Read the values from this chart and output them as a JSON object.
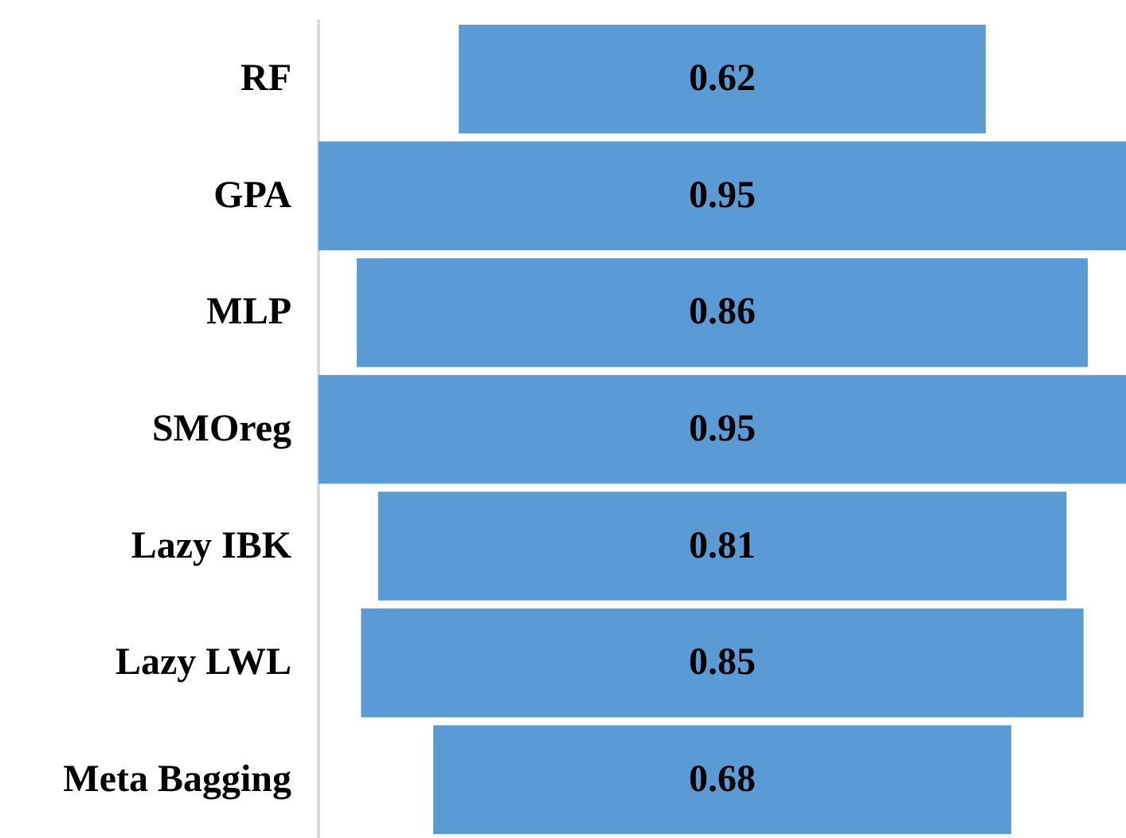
{
  "chart_data": {
    "type": "other",
    "categories": [
      "RF",
      "GPA",
      "MLP",
      "SMOreg",
      "Lazy IBK",
      "Lazy LWL",
      "Meta Bagging"
    ],
    "values": [
      0.62,
      0.95,
      0.86,
      0.95,
      0.81,
      0.85,
      0.68
    ],
    "color": "#5b9bd5",
    "data_labels": true
  }
}
